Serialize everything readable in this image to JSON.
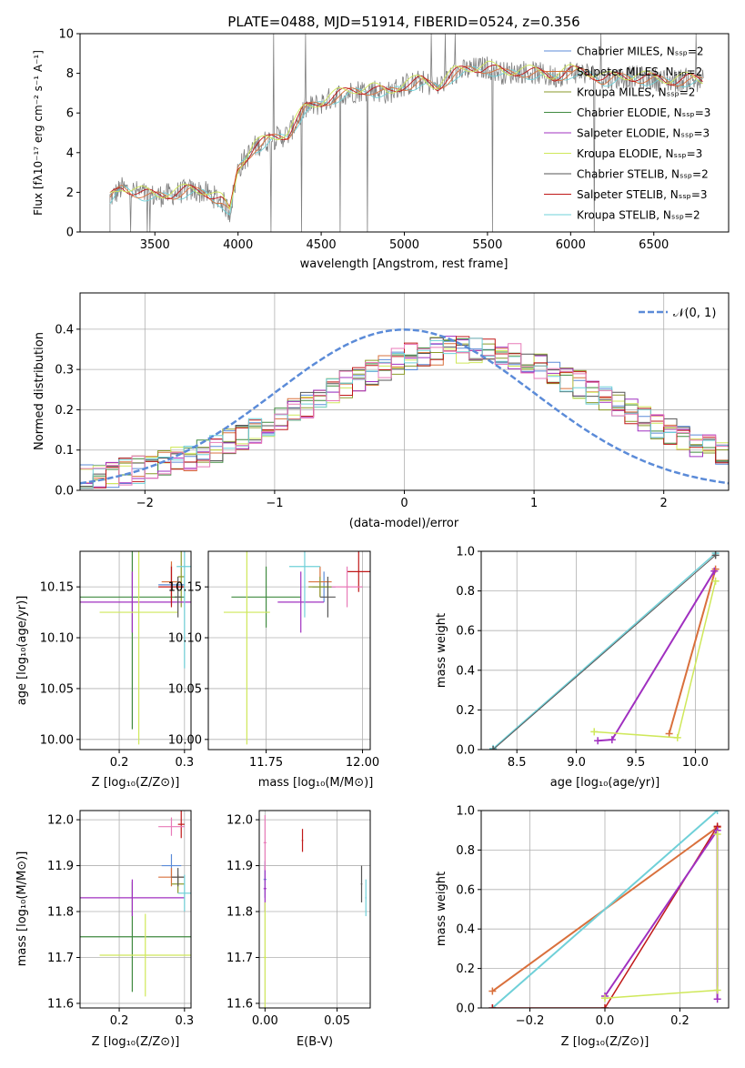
{
  "colors": {
    "chabrier_miles": "#5b8bd8",
    "salpeter_miles": "#d9703c",
    "kroupa_miles": "#8a9a2a",
    "chabrier_elodie": "#3f8a3f",
    "salpeter_elodie": "#a030c0",
    "kroupa_elodie": "#cfe85a",
    "chabrier_stelib": "#555555",
    "salpeter_stelib": "#c01818",
    "kroupa_stelib": "#6fd0d8",
    "pink": "#e87ab8",
    "dashed": "#5b8bd8"
  },
  "chart_data": [
    {
      "id": "spectrum",
      "type": "line",
      "title": "PLATE=0488, MJD=51914, FIBERID=0524, z=0.356",
      "xlabel": "wavelength [Angstrom, rest frame]",
      "ylabel": "Flux [fλ10⁻¹⁷ erg cm⁻² s⁻¹ A⁻¹]",
      "xlim": [
        3050,
        6950
      ],
      "ylim": [
        0,
        10
      ],
      "xticks": [
        "3500",
        "4000",
        "4500",
        "5000",
        "5500",
        "6000",
        "6500"
      ],
      "yticks": [
        "0",
        "2",
        "4",
        "6",
        "8",
        "10"
      ],
      "legend": "top-right",
      "legend_entries": [
        "Chabrier MILES, Nₛₛₚ=2",
        "Salpeter MILES, Nₛₛₚ=2",
        "Kroupa MILES, Nₛₛₚ=2",
        "Chabrier ELODIE, Nₛₛₚ=3",
        "Salpeter ELODIE, Nₛₛₚ=3",
        "Kroupa ELODIE, Nₛₛₚ=3",
        "Chabrier STELIB, Nₛₛₚ=2",
        "Salpeter STELIB, Nₛₛₚ=3",
        "Kroupa STELIB, Nₛₛₚ=2"
      ],
      "model_points": [
        [
          3230,
          1.7
        ],
        [
          3300,
          2.2
        ],
        [
          3400,
          2.0
        ],
        [
          3500,
          1.8
        ],
        [
          3600,
          1.9
        ],
        [
          3700,
          2.1
        ],
        [
          3800,
          2.0
        ],
        [
          3900,
          1.6
        ],
        [
          3950,
          1.0
        ],
        [
          4000,
          3.2
        ],
        [
          4100,
          4.3
        ],
        [
          4200,
          4.7
        ],
        [
          4300,
          4.9
        ],
        [
          4400,
          6.2
        ],
        [
          4500,
          6.5
        ],
        [
          4600,
          6.9
        ],
        [
          4700,
          7.1
        ],
        [
          4800,
          7.2
        ],
        [
          4900,
          7.0
        ],
        [
          5000,
          7.4
        ],
        [
          5100,
          7.6
        ],
        [
          5200,
          7.3
        ],
        [
          5300,
          8.0
        ],
        [
          5400,
          8.2
        ],
        [
          5500,
          8.3
        ],
        [
          5600,
          8.0
        ],
        [
          5700,
          8.1
        ],
        [
          5800,
          8.0
        ],
        [
          5900,
          7.8
        ],
        [
          6000,
          8.1
        ],
        [
          6100,
          8.0
        ],
        [
          6200,
          7.7
        ],
        [
          6300,
          7.8
        ],
        [
          6400,
          7.8
        ],
        [
          6500,
          7.7
        ],
        [
          6600,
          7.6
        ],
        [
          6700,
          7.7
        ],
        [
          6800,
          7.6
        ]
      ]
    },
    {
      "id": "residuals",
      "type": "line",
      "xlabel": "(data-model)/error",
      "ylabel": "Normed distribution",
      "xlim": [
        -2.5,
        2.5
      ],
      "ylim": [
        0,
        0.49
      ],
      "xticks": [
        "−2",
        "−1",
        "0",
        "1",
        "2"
      ],
      "yticks": [
        "0.0",
        "0.1",
        "0.2",
        "0.3",
        "0.4"
      ],
      "legend": "top-right",
      "legend_label": "𝒩(0, 1)"
    },
    {
      "id": "age_vs_z",
      "type": "scatter",
      "xlabel": "Z [log₁₀(Z/Z⊙)]",
      "ylabel": "age  [log₁₀(age/yr)]",
      "xlim": [
        0.14,
        0.31
      ],
      "ylim": [
        9.99,
        10.185
      ],
      "xticks": [
        "0.2",
        "0.3"
      ],
      "yticks": [
        "10.00",
        "10.05",
        "10.10",
        "10.15"
      ]
    },
    {
      "id": "age_vs_mass",
      "type": "scatter",
      "xlabel": "mass [log₁₀(M/M⊙)]",
      "xlim": [
        11.6,
        12.02
      ],
      "ylim": [
        9.99,
        10.185
      ],
      "xticks": [
        "11.75",
        "12.00"
      ],
      "yticks": [
        "10.00",
        "10.05",
        "10.10",
        "10.15"
      ]
    },
    {
      "id": "weight_vs_age",
      "type": "line",
      "xlabel": "age  [log₁₀(age/yr)]",
      "ylabel": "mass weight",
      "xlim": [
        8.2,
        10.28
      ],
      "ylim": [
        0,
        1
      ],
      "xticks": [
        "8.5",
        "9.0",
        "9.5",
        "10.0"
      ],
      "yticks": [
        "0.0",
        "0.2",
        "0.4",
        "0.6",
        "0.8",
        "1.0"
      ]
    },
    {
      "id": "mass_vs_z",
      "type": "scatter",
      "xlabel": "Z [log₁₀(Z/Z⊙)]",
      "ylabel": "mass [log₁₀(M/M⊙)]",
      "xlim": [
        0.14,
        0.31
      ],
      "ylim": [
        11.59,
        12.02
      ],
      "xticks": [
        "0.2",
        "0.3"
      ],
      "yticks": [
        "11.6",
        "11.7",
        "11.8",
        "11.9",
        "12.0"
      ]
    },
    {
      "id": "mass_vs_ebv",
      "type": "scatter",
      "xlabel": "E(B-V)",
      "xlim": [
        -0.004,
        0.073
      ],
      "ylim": [
        11.59,
        12.02
      ],
      "xticks": [
        "0.00",
        "0.05"
      ],
      "yticks": [
        "11.6",
        "11.7",
        "11.8",
        "11.9",
        "12.0"
      ]
    },
    {
      "id": "weight_vs_z",
      "type": "line",
      "xlabel": "Z [log₁₀(Z/Z⊙)]",
      "ylabel": "mass weight",
      "xlim": [
        -0.33,
        0.33
      ],
      "ylim": [
        0,
        1
      ],
      "xticks": [
        "−0.2",
        "0.0",
        "0.2"
      ],
      "yticks": [
        "0.0",
        "0.2",
        "0.4",
        "0.6",
        "0.8",
        "1.0"
      ]
    }
  ]
}
